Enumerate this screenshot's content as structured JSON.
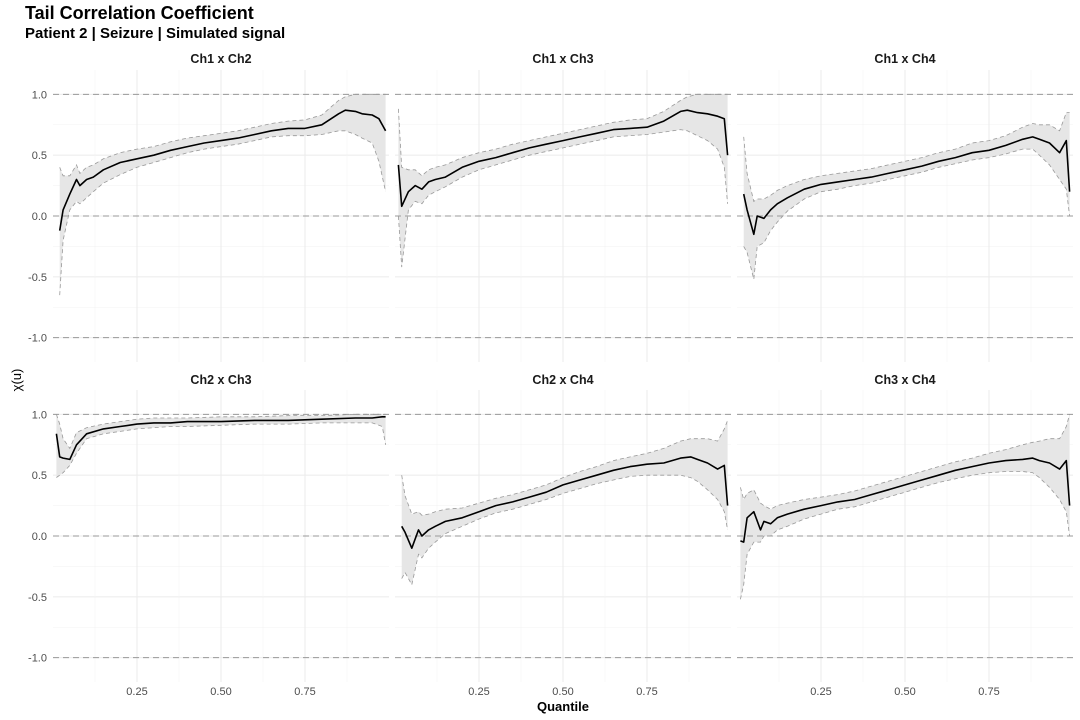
{
  "header": {
    "title": "Tail Correlation Coefficient",
    "subtitle": "Patient 2 | Seizure | Simulated signal"
  },
  "chart_data": {
    "type": "line",
    "xlabel": "Quantile",
    "ylabel": "χ(u)",
    "xlim": [
      0.0,
      1.0
    ],
    "ylim": [
      -1.2,
      1.2
    ],
    "xticks": [
      "0.25",
      "0.50",
      "0.75"
    ],
    "xtick_values": [
      0.25,
      0.5,
      0.75
    ],
    "yticks": [
      "-1.0",
      "-0.5",
      "0.0",
      "0.5",
      "1.0"
    ],
    "ytick_values": [
      -1.0,
      -0.5,
      0.0,
      0.5,
      1.0
    ],
    "reference_lines": [
      -1.0,
      0.0,
      1.0
    ],
    "grid": true,
    "colors": {
      "line": "#000000",
      "band_fill": "#e6e6e6",
      "band_edge": "#999999",
      "reference": "#999999",
      "grid": "#ebebeb"
    },
    "panels": [
      {
        "name": "Ch1 x Ch2",
        "x": [
          0.02,
          0.03,
          0.05,
          0.07,
          0.08,
          0.1,
          0.12,
          0.15,
          0.2,
          0.25,
          0.3,
          0.35,
          0.4,
          0.45,
          0.5,
          0.55,
          0.6,
          0.65,
          0.7,
          0.75,
          0.8,
          0.85,
          0.87,
          0.9,
          0.92,
          0.95,
          0.97,
          0.99
        ],
        "y": [
          -0.12,
          0.05,
          0.18,
          0.3,
          0.25,
          0.3,
          0.32,
          0.38,
          0.44,
          0.47,
          0.5,
          0.54,
          0.57,
          0.6,
          0.62,
          0.64,
          0.67,
          0.7,
          0.72,
          0.72,
          0.75,
          0.84,
          0.87,
          0.86,
          0.84,
          0.83,
          0.8,
          0.7
        ],
        "lower": [
          -0.65,
          -0.2,
          0.05,
          0.12,
          0.1,
          0.15,
          0.2,
          0.27,
          0.34,
          0.4,
          0.44,
          0.48,
          0.52,
          0.55,
          0.57,
          0.59,
          0.62,
          0.65,
          0.66,
          0.66,
          0.67,
          0.7,
          0.7,
          0.67,
          0.64,
          0.6,
          0.45,
          0.2
        ],
        "upper": [
          0.4,
          0.33,
          0.33,
          0.42,
          0.35,
          0.4,
          0.42,
          0.47,
          0.52,
          0.55,
          0.57,
          0.61,
          0.64,
          0.66,
          0.68,
          0.7,
          0.73,
          0.76,
          0.78,
          0.79,
          0.83,
          0.95,
          0.98,
          1.0,
          1.0,
          1.0,
          1.0,
          1.0
        ]
      },
      {
        "name": "Ch1 x Ch3",
        "x": [
          0.01,
          0.02,
          0.04,
          0.06,
          0.08,
          0.1,
          0.12,
          0.15,
          0.2,
          0.25,
          0.3,
          0.35,
          0.4,
          0.45,
          0.5,
          0.55,
          0.6,
          0.65,
          0.7,
          0.75,
          0.8,
          0.85,
          0.87,
          0.9,
          0.93,
          0.96,
          0.98,
          0.99
        ],
        "y": [
          0.42,
          0.08,
          0.2,
          0.25,
          0.22,
          0.28,
          0.3,
          0.32,
          0.4,
          0.45,
          0.48,
          0.52,
          0.56,
          0.59,
          0.62,
          0.65,
          0.68,
          0.71,
          0.72,
          0.73,
          0.78,
          0.86,
          0.87,
          0.85,
          0.84,
          0.82,
          0.8,
          0.5
        ],
        "lower": [
          0.0,
          -0.42,
          0.05,
          0.12,
          0.1,
          0.17,
          0.2,
          0.24,
          0.32,
          0.38,
          0.42,
          0.46,
          0.5,
          0.53,
          0.56,
          0.59,
          0.62,
          0.65,
          0.66,
          0.67,
          0.69,
          0.71,
          0.7,
          0.66,
          0.62,
          0.55,
          0.4,
          0.1
        ],
        "upper": [
          0.88,
          0.4,
          0.38,
          0.38,
          0.33,
          0.38,
          0.4,
          0.42,
          0.48,
          0.52,
          0.55,
          0.59,
          0.62,
          0.65,
          0.68,
          0.71,
          0.74,
          0.77,
          0.79,
          0.8,
          0.86,
          0.95,
          0.98,
          1.0,
          1.0,
          1.0,
          1.0,
          1.0
        ]
      },
      {
        "name": "Ch1 x Ch4",
        "x": [
          0.02,
          0.03,
          0.05,
          0.06,
          0.08,
          0.1,
          0.12,
          0.15,
          0.2,
          0.25,
          0.3,
          0.35,
          0.4,
          0.45,
          0.5,
          0.55,
          0.6,
          0.65,
          0.7,
          0.75,
          0.8,
          0.85,
          0.88,
          0.9,
          0.93,
          0.96,
          0.98,
          0.99
        ],
        "y": [
          0.18,
          0.05,
          -0.15,
          0.0,
          -0.02,
          0.05,
          0.1,
          0.15,
          0.22,
          0.26,
          0.28,
          0.3,
          0.32,
          0.35,
          0.38,
          0.41,
          0.45,
          0.48,
          0.52,
          0.54,
          0.58,
          0.63,
          0.65,
          0.63,
          0.6,
          0.52,
          0.62,
          0.2
        ],
        "lower": [
          -0.25,
          -0.3,
          -0.52,
          -0.25,
          -0.22,
          -0.12,
          -0.05,
          0.04,
          0.14,
          0.2,
          0.22,
          0.25,
          0.27,
          0.3,
          0.33,
          0.36,
          0.4,
          0.43,
          0.46,
          0.48,
          0.51,
          0.55,
          0.55,
          0.5,
          0.42,
          0.3,
          0.22,
          0.0
        ],
        "upper": [
          0.65,
          0.35,
          0.12,
          0.14,
          0.14,
          0.17,
          0.21,
          0.25,
          0.3,
          0.33,
          0.35,
          0.37,
          0.39,
          0.42,
          0.45,
          0.48,
          0.52,
          0.55,
          0.6,
          0.62,
          0.66,
          0.73,
          0.76,
          0.75,
          0.75,
          0.7,
          0.85,
          0.85
        ]
      },
      {
        "name": "Ch2 x Ch3",
        "x": [
          0.01,
          0.02,
          0.03,
          0.05,
          0.07,
          0.1,
          0.15,
          0.2,
          0.25,
          0.3,
          0.35,
          0.4,
          0.5,
          0.6,
          0.7,
          0.8,
          0.9,
          0.95,
          0.98,
          0.99
        ],
        "y": [
          0.84,
          0.65,
          0.64,
          0.63,
          0.75,
          0.84,
          0.88,
          0.9,
          0.92,
          0.93,
          0.93,
          0.94,
          0.94,
          0.95,
          0.95,
          0.96,
          0.97,
          0.97,
          0.98,
          0.98
        ],
        "lower": [
          0.48,
          0.5,
          0.52,
          0.58,
          0.68,
          0.8,
          0.84,
          0.86,
          0.88,
          0.89,
          0.9,
          0.9,
          0.91,
          0.92,
          0.92,
          0.93,
          0.93,
          0.93,
          0.9,
          0.75
        ],
        "upper": [
          1.0,
          0.92,
          0.8,
          0.72,
          0.85,
          0.89,
          0.92,
          0.94,
          0.96,
          0.97,
          0.97,
          0.97,
          0.98,
          0.98,
          0.99,
          0.99,
          1.0,
          1.0,
          1.0,
          1.0
        ]
      },
      {
        "name": "Ch2 x Ch4",
        "x": [
          0.02,
          0.03,
          0.05,
          0.07,
          0.08,
          0.1,
          0.12,
          0.15,
          0.2,
          0.25,
          0.3,
          0.35,
          0.4,
          0.45,
          0.5,
          0.55,
          0.6,
          0.65,
          0.7,
          0.75,
          0.8,
          0.85,
          0.88,
          0.9,
          0.93,
          0.96,
          0.98,
          0.99
        ],
        "y": [
          0.08,
          0.03,
          -0.1,
          0.05,
          0.0,
          0.05,
          0.08,
          0.12,
          0.15,
          0.2,
          0.25,
          0.28,
          0.32,
          0.36,
          0.42,
          0.46,
          0.5,
          0.54,
          0.57,
          0.59,
          0.6,
          0.64,
          0.65,
          0.63,
          0.6,
          0.55,
          0.58,
          0.25
        ],
        "lower": [
          -0.35,
          -0.3,
          -0.4,
          -0.15,
          -0.18,
          -0.1,
          -0.05,
          0.02,
          0.08,
          0.14,
          0.19,
          0.22,
          0.26,
          0.3,
          0.35,
          0.39,
          0.43,
          0.46,
          0.49,
          0.5,
          0.5,
          0.5,
          0.48,
          0.45,
          0.38,
          0.3,
          0.2,
          0.05
        ],
        "upper": [
          0.5,
          0.33,
          0.18,
          0.2,
          0.17,
          0.18,
          0.2,
          0.22,
          0.23,
          0.27,
          0.31,
          0.34,
          0.38,
          0.42,
          0.48,
          0.53,
          0.57,
          0.62,
          0.65,
          0.68,
          0.72,
          0.78,
          0.8,
          0.8,
          0.8,
          0.78,
          0.88,
          0.95
        ]
      },
      {
        "name": "Ch3 x Ch4",
        "x": [
          0.01,
          0.02,
          0.03,
          0.05,
          0.07,
          0.08,
          0.1,
          0.12,
          0.15,
          0.2,
          0.25,
          0.3,
          0.35,
          0.4,
          0.45,
          0.5,
          0.55,
          0.6,
          0.65,
          0.7,
          0.75,
          0.8,
          0.85,
          0.88,
          0.9,
          0.93,
          0.96,
          0.98,
          0.99
        ],
        "y": [
          -0.04,
          -0.05,
          0.15,
          0.2,
          0.05,
          0.12,
          0.1,
          0.15,
          0.18,
          0.22,
          0.25,
          0.28,
          0.3,
          0.34,
          0.38,
          0.42,
          0.46,
          0.5,
          0.54,
          0.57,
          0.6,
          0.62,
          0.63,
          0.64,
          0.62,
          0.6,
          0.55,
          0.62,
          0.25
        ],
        "lower": [
          -0.52,
          -0.4,
          -0.15,
          -0.05,
          -0.05,
          0.0,
          0.0,
          0.05,
          0.08,
          0.14,
          0.18,
          0.22,
          0.24,
          0.28,
          0.32,
          0.36,
          0.4,
          0.44,
          0.47,
          0.5,
          0.52,
          0.53,
          0.53,
          0.52,
          0.48,
          0.4,
          0.3,
          0.2,
          0.0
        ],
        "upper": [
          0.4,
          0.3,
          0.35,
          0.38,
          0.27,
          0.25,
          0.22,
          0.25,
          0.27,
          0.3,
          0.32,
          0.34,
          0.37,
          0.41,
          0.45,
          0.49,
          0.53,
          0.57,
          0.61,
          0.64,
          0.68,
          0.71,
          0.75,
          0.77,
          0.78,
          0.8,
          0.8,
          0.9,
          1.0
        ]
      }
    ]
  }
}
